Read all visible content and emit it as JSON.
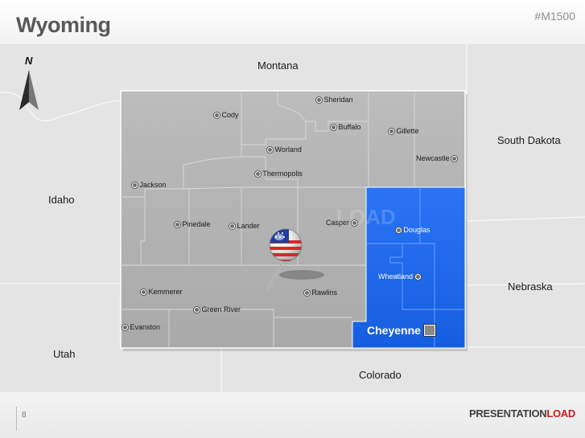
{
  "header": {
    "title": "Wyoming",
    "code": "#M1500"
  },
  "footer": {
    "page_number": "8",
    "brand_main": "PRESENTATION",
    "brand_accent": "LOAD"
  },
  "map": {
    "compass": {
      "label": "N",
      "icon": "north-arrow-icon"
    },
    "neighbors": {
      "montana": "Montana",
      "south_dakota": "South Dakota",
      "idaho": "Idaho",
      "nebraska": "Nebraska",
      "utah": "Utah",
      "colorado": "Colorado"
    },
    "cities": {
      "sheridan": "Sheridan",
      "cody": "Cody",
      "buffalo": "Buffalo",
      "gillette": "Gillette",
      "worland": "Worland",
      "newcastle": "Newcastle",
      "thermopolis": "Thermopolis",
      "jackson": "Jackson",
      "casper": "Casper",
      "douglas": "Douglas",
      "pinedale": "Pinedale",
      "lander": "Lander",
      "wheatland": "Wheatland",
      "kemmerer": "Kemmerer",
      "rawlins": "Rawlins",
      "green_river": "Green River",
      "evanston": "Evanston"
    },
    "capital": "Cheyenne",
    "colors": {
      "highlight": "#1f6af0",
      "state": "#b4b4b4",
      "background": "#e4e4e4"
    },
    "pin_icon": "us-flag-pushpin-icon"
  }
}
